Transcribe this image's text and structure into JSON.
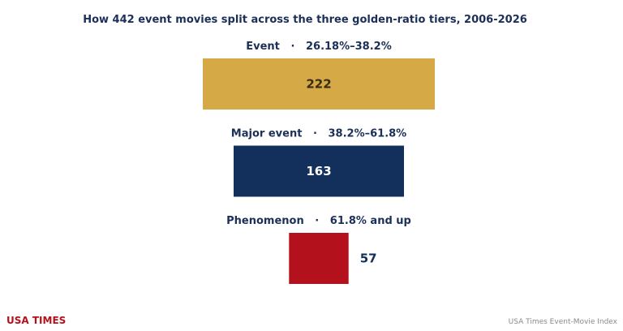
{
  "chart_data": {
    "type": "bar",
    "title": "How 442 event movies split across the three golden-ratio tiers, 2006-2026",
    "categories": [
      "Event   ·   26.18%–38.2%",
      "Major event   ·   38.2%–61.8%",
      "Phenomenon   ·   61.8% and up"
    ],
    "values": [
      222,
      163,
      57
    ],
    "colors": [
      "#d4a946",
      "#12305b",
      "#b3121c"
    ],
    "value_label_colors": [
      "#3a2c10",
      "#ffffff",
      "#12305b"
    ],
    "orientation": "centered-horizontal",
    "grid": false,
    "xlabel": "",
    "ylabel": ""
  },
  "footer": {
    "brand": "USA TIMES",
    "source": "USA Times Event-Movie Index"
  }
}
